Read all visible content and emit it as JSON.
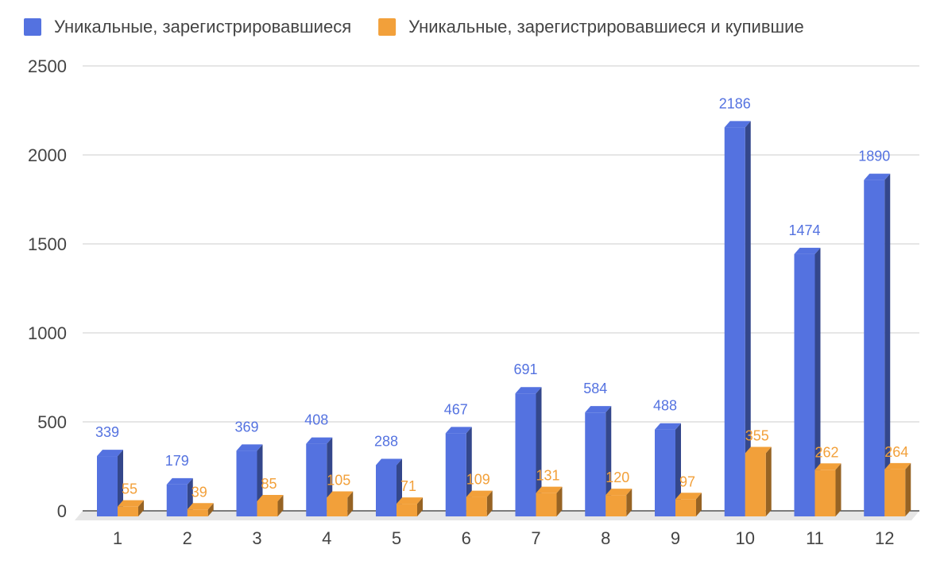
{
  "chart_data": {
    "type": "bar",
    "style": "3d-clustered",
    "categories": [
      "1",
      "2",
      "3",
      "4",
      "5",
      "6",
      "7",
      "8",
      "9",
      "10",
      "11",
      "12"
    ],
    "series": [
      {
        "name": "Уникальные, зарегистрировавшиеся",
        "color": "#5472e0",
        "values": [
          339,
          179,
          369,
          408,
          288,
          467,
          691,
          584,
          488,
          2186,
          1474,
          1890
        ]
      },
      {
        "name": "Уникальные, зарегистрировавшиеся и купившие",
        "color": "#f2a03a",
        "values": [
          55,
          39,
          85,
          105,
          71,
          109,
          131,
          120,
          97,
          355,
          262,
          264
        ]
      }
    ],
    "yticks": [
      "0",
      "500",
      "1000",
      "1500",
      "2000",
      "2500"
    ],
    "ylim": [
      0,
      2500
    ],
    "grid": true,
    "legend_position": "top-left",
    "data_labels": true
  }
}
